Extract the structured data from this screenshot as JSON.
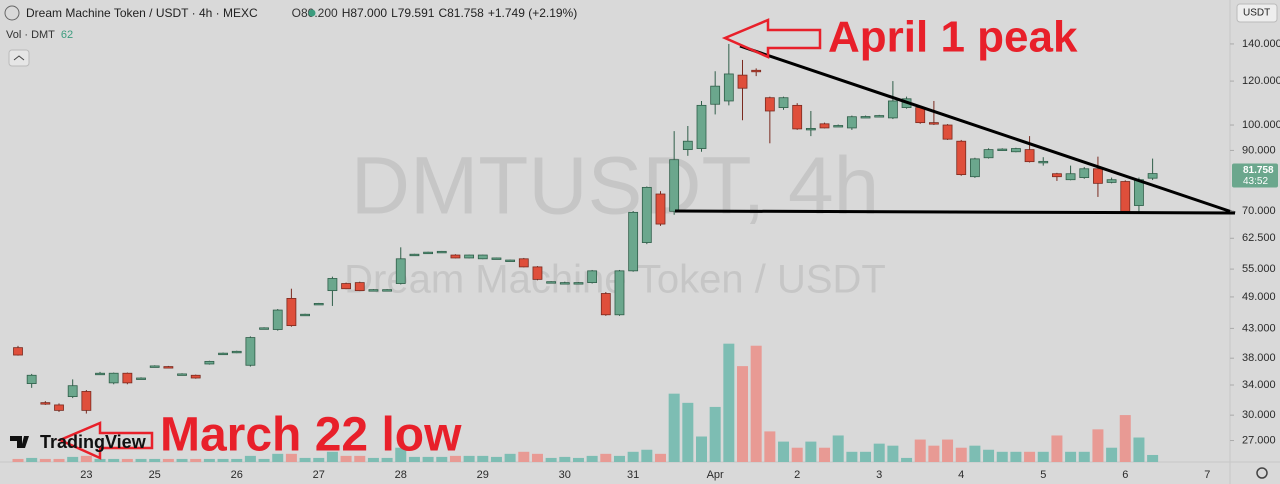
{
  "header": {
    "symbol": "Dream Machine Token / USDT · 4h · MEXC",
    "open": "O80.200",
    "high": "H87.000",
    "low": "L79.591",
    "close": "C81.758",
    "change": "+1.749 (+2.19%)",
    "volume_label": "Vol · DMT",
    "currency": "USDT",
    "logo": "TradingView",
    "countdown": "43:52"
  },
  "annotations": {
    "peak": "April 1 peak",
    "low": "March 22 low"
  },
  "watermark": {
    "ticker": "DMTUSDT, 4h",
    "name": "Dream Machine Token / USDT"
  },
  "chart_data": {
    "type": "candlestick",
    "categories": [
      null,
      null,
      null,
      null,
      null,
      "23",
      null,
      null,
      null,
      null,
      "25",
      null,
      null,
      null,
      null,
      null,
      "26",
      null,
      null,
      null,
      null,
      null,
      "27",
      null,
      null,
      null,
      null,
      null,
      "28",
      null,
      null,
      null,
      null,
      null,
      "29",
      null,
      null,
      null,
      null,
      null,
      "30",
      null,
      null,
      null,
      null,
      "31",
      null,
      null,
      null,
      null,
      null,
      "Apr",
      null,
      null,
      null,
      null,
      null,
      "2",
      null,
      null,
      null,
      null,
      null,
      "3",
      null,
      null,
      null,
      null,
      null,
      "4",
      null,
      null,
      null,
      null,
      null,
      "5",
      null,
      null,
      null,
      null,
      null,
      "6",
      null,
      null,
      null,
      null,
      null,
      "7"
    ],
    "open": [
      39.7,
      34.2,
      31.6,
      31.3,
      32.4,
      33.1,
      35.6,
      34.3,
      35.7,
      34.9,
      36.7,
      36.7,
      35.5,
      35.4,
      37.1,
      38.7,
      39.0,
      36.9,
      43.0,
      42.8,
      48.7,
      45.5,
      47.6,
      50.3,
      51.8,
      52.0,
      50.4,
      50.5,
      51.8,
      58.4,
      58.9,
      59.1,
      58.3,
      57.6,
      57.4,
      57.5,
      57.0,
      57.4,
      55.5,
      52.1,
      52.0,
      51.9,
      52.0,
      49.7,
      45.5,
      54.6,
      61.4,
      75.1,
      69.9,
      90.3,
      90.7,
      109.0,
      110.5,
      123.0,
      125.5,
      112.0,
      107.5,
      108.5,
      98.4,
      100.5,
      99.6,
      98.8,
      103.4,
      103.8,
      103.0,
      107.5,
      107.5,
      101.0,
      100.0,
      93.5,
      80.7,
      87.3,
      90.3,
      89.5,
      90.3,
      85.9,
      81.7,
      79.7,
      80.4,
      83.4,
      78.8,
      79.1,
      71.6,
      80.2,
      null,
      null,
      null,
      null
    ],
    "high": [
      40.0,
      35.6,
      31.8,
      31.5,
      34.8,
      33.3,
      35.9,
      35.8,
      35.8,
      35.1,
      36.9,
      36.8,
      35.7,
      35.5,
      37.6,
      38.9,
      39.2,
      41.6,
      43.2,
      46.6,
      50.7,
      45.7,
      47.8,
      53.3,
      52.0,
      52.2,
      50.6,
      50.6,
      60.2,
      58.6,
      59.1,
      59.3,
      58.5,
      58.4,
      58.4,
      57.7,
      57.2,
      57.6,
      55.7,
      52.3,
      52.2,
      52.1,
      54.8,
      50.0,
      54.8,
      70.0,
      77.5,
      76.0,
      97.5,
      99.6,
      110.5,
      125.0,
      140.0,
      131.0,
      126.5,
      112.5,
      112.5,
      109.5,
      106.0,
      101.0,
      100.2,
      104.0,
      104.0,
      104.3,
      120.0,
      112.5,
      108.0,
      110.5,
      100.4,
      94.0,
      87.3,
      90.8,
      90.8,
      91.0,
      95.5,
      87.5,
      82.0,
      84.5,
      84.0,
      87.7,
      80.4,
      79.5,
      80.4,
      87.0,
      null,
      null,
      null,
      null
    ],
    "low": [
      38.4,
      33.6,
      31.3,
      30.4,
      32.2,
      30.2,
      35.5,
      34.1,
      34.1,
      34.8,
      36.6,
      36.5,
      35.4,
      34.9,
      37.0,
      38.6,
      38.8,
      36.7,
      42.9,
      42.6,
      43.3,
      45.4,
      47.5,
      47.2,
      50.6,
      50.2,
      50.3,
      50.4,
      51.6,
      58.3,
      58.8,
      59.0,
      57.5,
      57.5,
      57.3,
      57.4,
      56.9,
      55.4,
      52.5,
      52.0,
      51.9,
      51.8,
      51.8,
      45.3,
      45.3,
      54.4,
      61.0,
      65.8,
      68.9,
      88.0,
      89.5,
      104.5,
      108.5,
      102.0,
      122.5,
      92.7,
      106.5,
      98.0,
      95.5,
      98.6,
      99.3,
      98.0,
      103.0,
      103.4,
      102.5,
      107.0,
      100.5,
      100.0,
      94.0,
      81.0,
      80.3,
      87.0,
      89.8,
      89.3,
      85.6,
      84.5,
      79.3,
      79.5,
      80.0,
      74.2,
      78.5,
      69.3,
      69.6,
      79.591,
      null,
      null,
      null,
      null
    ],
    "close": [
      38.5,
      35.4,
      31.5,
      30.6,
      33.9,
      30.6,
      35.7,
      35.7,
      34.3,
      35.0,
      36.8,
      36.6,
      35.6,
      35.0,
      37.5,
      38.8,
      39.1,
      41.4,
      43.1,
      46.4,
      43.5,
      45.6,
      47.7,
      52.9,
      50.7,
      50.3,
      50.5,
      50.5,
      57.4,
      58.5,
      59.0,
      59.2,
      57.6,
      58.3,
      58.3,
      57.6,
      57.1,
      55.5,
      52.7,
      52.2,
      52.0,
      52.0,
      54.6,
      45.5,
      54.6,
      69.6,
      77.2,
      66.3,
      86.6,
      93.5,
      108.5,
      117.5,
      123.6,
      116.5,
      125.0,
      106.0,
      112.0,
      98.4,
      98.6,
      98.8,
      99.8,
      103.5,
      103.6,
      104.0,
      110.5,
      111.5,
      101.0,
      100.5,
      94.3,
      81.4,
      86.9,
      90.3,
      90.5,
      90.7,
      85.9,
      86.0,
      80.7,
      81.7,
      83.4,
      78.5,
      79.7,
      69.9,
      79.7,
      81.758,
      null,
      null,
      null,
      null
    ],
    "volume": [
      27,
      36,
      27,
      27,
      45,
      54,
      27,
      27,
      27,
      27,
      27,
      27,
      27,
      27,
      27,
      27,
      27,
      54,
      27,
      72,
      72,
      36,
      36,
      90,
      54,
      54,
      36,
      36,
      126,
      45,
      45,
      45,
      54,
      54,
      54,
      45,
      72,
      90,
      72,
      36,
      45,
      36,
      54,
      72,
      54,
      90,
      108,
      72,
      603,
      522,
      225,
      486,
      1044,
      846,
      1026,
      270,
      180,
      126,
      180,
      126,
      234,
      90,
      90,
      162,
      144,
      36,
      198,
      144,
      198,
      126,
      144,
      108,
      90,
      90,
      90,
      90,
      234,
      90,
      90,
      288,
      126,
      414,
      216,
      62,
      null,
      null,
      null,
      null
    ],
    "ylim": [
      24.7,
      168
    ],
    "log_scale": true,
    "grid": false,
    "yticks": [
      {
        "value": 140,
        "label": "140.000"
      },
      {
        "value": 120,
        "label": "120.000"
      },
      {
        "value": 100,
        "label": "100.000"
      },
      {
        "value": 90,
        "label": "90.000"
      },
      {
        "value": 70,
        "label": "70.000"
      },
      {
        "value": 62.5,
        "label": "62.500"
      },
      {
        "value": 55,
        "label": "55.000"
      },
      {
        "value": 49,
        "label": "49.000"
      },
      {
        "value": 43,
        "label": "43.000"
      },
      {
        "value": 38,
        "label": "38.000"
      },
      {
        "value": 34,
        "label": "34.000"
      },
      {
        "value": 30,
        "label": "30.000"
      },
      {
        "value": 27,
        "label": "27.000"
      }
    ],
    "volume_lim": [
      0,
      1500
    ],
    "colors": {
      "up": "#6ba78d",
      "down": "#df4f3b",
      "up_volume": "#7dbdb3",
      "down_volume": "#e89a94"
    }
  }
}
